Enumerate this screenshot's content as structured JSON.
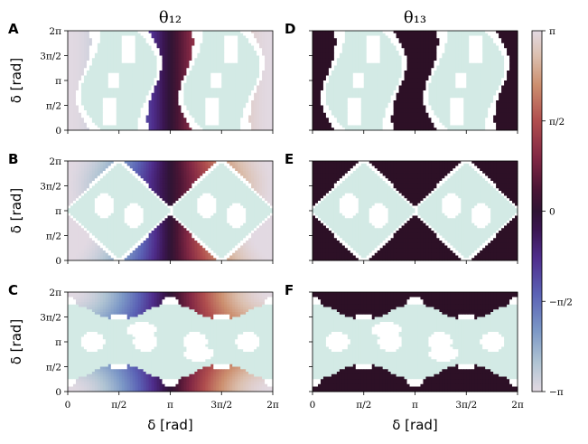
{
  "chart_data": {
    "type": "heatmap",
    "column_titles": [
      "θ₁₂",
      "θ₁₃"
    ],
    "panels": [
      {
        "label": "A",
        "column": 0,
        "row": 0,
        "pattern": "vertical-pinch"
      },
      {
        "label": "B",
        "column": 0,
        "row": 1,
        "pattern": "double-diamond"
      },
      {
        "label": "C",
        "column": 0,
        "row": 2,
        "pattern": "horizontal-band"
      },
      {
        "label": "D",
        "column": 1,
        "row": 0,
        "pattern": "vertical-pinch"
      },
      {
        "label": "E",
        "column": 1,
        "row": 1,
        "pattern": "double-diamond"
      },
      {
        "label": "F",
        "column": 1,
        "row": 2,
        "pattern": "horizontal-band"
      }
    ],
    "xlabel": "δ [rad]",
    "ylabel": "δ [rad]",
    "xlim": [
      0,
      6.2832
    ],
    "ylim": [
      0,
      6.2832
    ],
    "x_ticks": [
      "0",
      "π/2",
      "π",
      "3π/2",
      "2π"
    ],
    "y_ticks": [
      "0",
      "π/2",
      "π",
      "3π/2",
      "2π"
    ],
    "colorbar": {
      "range": [
        -3.1416,
        3.1416
      ],
      "ticks": [
        "π",
        "π/2",
        "0",
        "−π/2",
        "−π"
      ],
      "colormap": "twilight"
    },
    "region_colors": {
      "excluded": "#d3eae5",
      "hole": "#ffffff",
      "theta13_value": "#2d1026"
    }
  }
}
